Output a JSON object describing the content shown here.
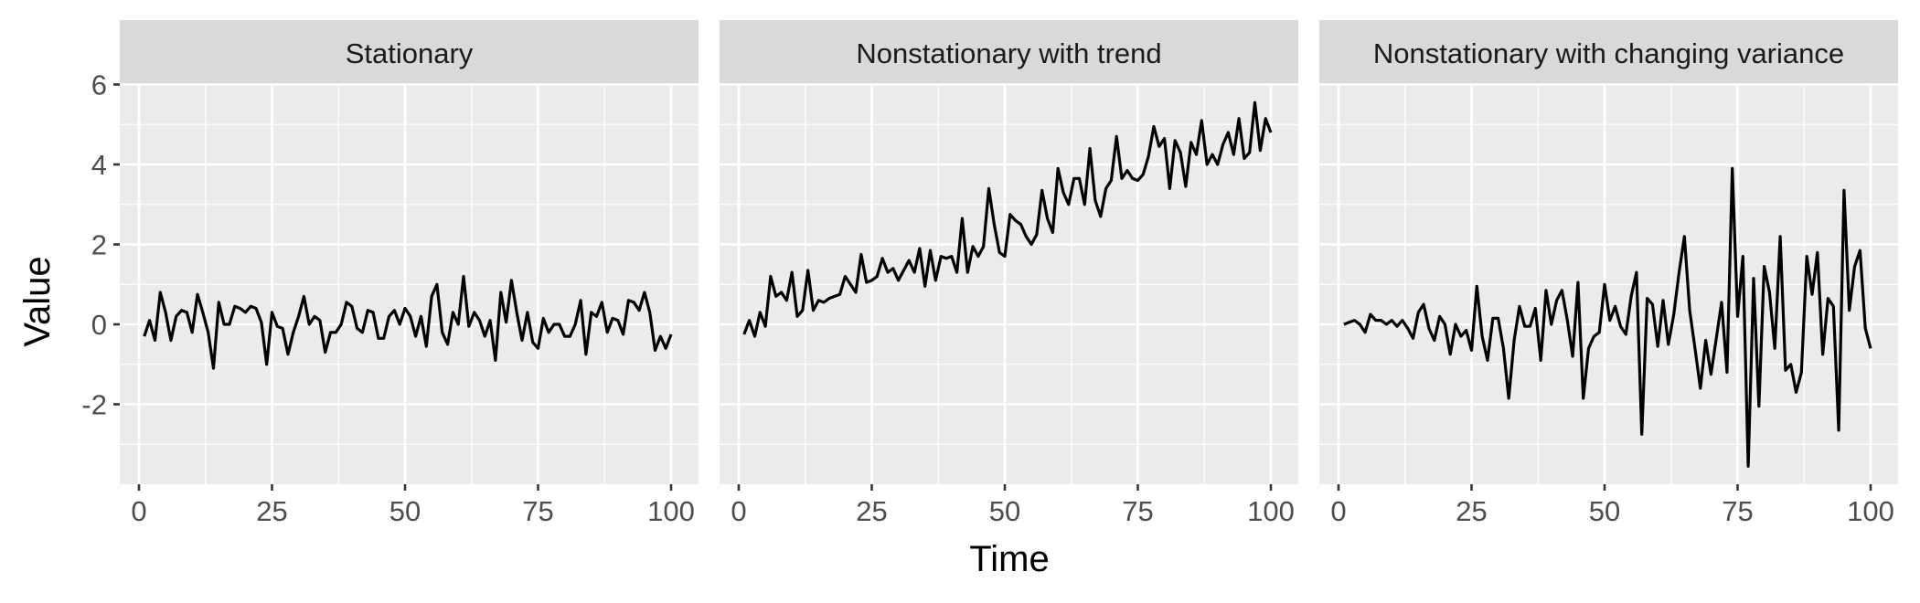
{
  "chart_data": {
    "type": "line",
    "xlabel": "Time",
    "ylabel": "Value",
    "xlim": [
      1,
      100
    ],
    "ylim": [
      -3.9,
      6.3
    ],
    "x_ticks": [
      0,
      25,
      50,
      75,
      100
    ],
    "x_tick_labels": [
      "0",
      "25",
      "50",
      "75",
      "100"
    ],
    "y_ticks": [
      -2,
      0,
      2,
      4,
      6
    ],
    "y_tick_labels": [
      "-2",
      "0",
      "2",
      "4",
      "6"
    ],
    "grid": true,
    "facets": [
      {
        "title": "Stationary",
        "values": [
          -0.3,
          0.1,
          -0.4,
          0.8,
          0.3,
          -0.4,
          0.2,
          0.35,
          0.3,
          -0.2,
          0.75,
          0.3,
          -0.2,
          -1.1,
          0.55,
          0.0,
          0.0,
          0.45,
          0.4,
          0.3,
          0.45,
          0.4,
          0.05,
          -1.0,
          0.3,
          -0.05,
          -0.1,
          -0.75,
          -0.2,
          0.2,
          0.7,
          0.0,
          0.2,
          0.1,
          -0.7,
          -0.2,
          -0.2,
          0.0,
          0.55,
          0.45,
          -0.1,
          -0.2,
          0.35,
          0.3,
          -0.35,
          -0.35,
          0.2,
          0.35,
          0.0,
          0.4,
          0.2,
          -0.3,
          0.2,
          -0.55,
          0.7,
          1.0,
          -0.2,
          -0.5,
          0.3,
          0.0,
          1.2,
          -0.05,
          0.3,
          0.1,
          -0.3,
          0.1,
          -0.9,
          0.8,
          0.05,
          1.1,
          0.3,
          -0.4,
          0.3,
          -0.45,
          -0.6,
          0.15,
          -0.2,
          0.0,
          0.0,
          -0.3,
          -0.3,
          0.0,
          0.6,
          -0.75,
          0.3,
          0.2,
          0.55,
          -0.2,
          0.15,
          0.1,
          -0.25,
          0.6,
          0.55,
          0.35,
          0.8,
          0.3,
          -0.65,
          -0.3,
          -0.6,
          -0.25
        ]
      },
      {
        "title": "Nonstationary with trend",
        "values": [
          -0.25,
          0.1,
          -0.3,
          0.3,
          -0.05,
          1.2,
          0.7,
          0.8,
          0.6,
          1.3,
          0.2,
          0.35,
          1.35,
          0.35,
          0.6,
          0.55,
          0.65,
          0.7,
          0.75,
          1.2,
          1.0,
          0.8,
          1.75,
          1.05,
          1.1,
          1.2,
          1.65,
          1.3,
          1.4,
          1.1,
          1.35,
          1.6,
          1.3,
          1.9,
          0.95,
          1.85,
          1.1,
          1.7,
          1.65,
          1.7,
          1.3,
          2.65,
          1.3,
          1.95,
          1.7,
          1.95,
          3.4,
          2.5,
          1.8,
          1.7,
          2.75,
          2.6,
          2.5,
          2.2,
          2.0,
          2.25,
          3.35,
          2.65,
          2.3,
          3.9,
          3.3,
          3.0,
          3.65,
          3.65,
          3.0,
          4.4,
          3.1,
          2.7,
          3.4,
          3.6,
          4.7,
          3.65,
          3.85,
          3.65,
          3.6,
          3.75,
          4.2,
          4.95,
          4.45,
          4.65,
          3.4,
          4.6,
          4.3,
          3.45,
          4.55,
          4.25,
          5.1,
          4.0,
          4.25,
          4.0,
          4.5,
          4.8,
          4.25,
          5.15,
          4.15,
          4.3,
          5.55,
          4.35,
          5.15,
          4.8
        ]
      },
      {
        "title": "Nonstationary with changing variance",
        "values": [
          0.0,
          0.05,
          0.1,
          0.0,
          -0.2,
          0.25,
          0.1,
          0.1,
          0.0,
          0.1,
          -0.05,
          0.1,
          -0.1,
          -0.35,
          0.3,
          0.5,
          -0.1,
          -0.4,
          0.2,
          0.0,
          -0.75,
          0.0,
          -0.3,
          -0.15,
          -0.65,
          0.95,
          -0.3,
          -0.9,
          0.15,
          0.15,
          -0.6,
          -1.85,
          -0.4,
          0.45,
          -0.05,
          -0.05,
          0.4,
          -0.9,
          0.85,
          0.0,
          0.6,
          0.85,
          0.1,
          -0.8,
          1.05,
          -1.85,
          -0.6,
          -0.3,
          -0.2,
          1.0,
          0.1,
          0.45,
          -0.05,
          -0.25,
          0.7,
          1.3,
          -2.75,
          0.65,
          0.5,
          -0.55,
          0.6,
          -0.5,
          0.25,
          1.3,
          2.2,
          0.35,
          -0.6,
          -1.6,
          -0.4,
          -1.25,
          -0.35,
          0.55,
          -1.2,
          3.9,
          0.2,
          1.7,
          -3.55,
          1.15,
          -2.05,
          1.45,
          0.8,
          -0.6,
          2.2,
          -1.15,
          -1.0,
          -1.7,
          -1.2,
          1.7,
          0.75,
          1.8,
          -0.75,
          0.65,
          0.45,
          -2.65,
          3.35,
          0.35,
          1.45,
          1.85,
          -0.1,
          -0.6
        ]
      }
    ]
  }
}
